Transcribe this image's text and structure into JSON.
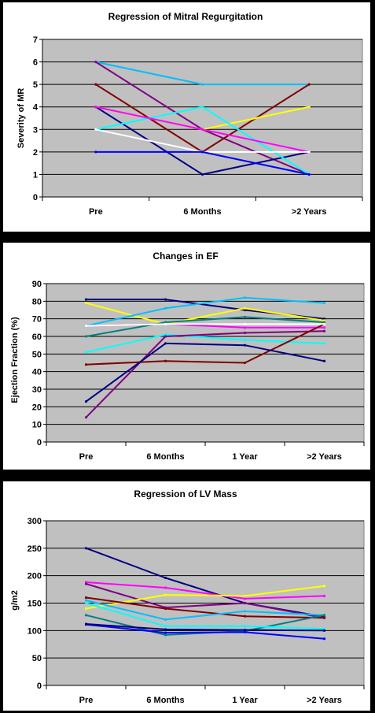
{
  "chart_data": [
    {
      "type": "line",
      "title": "Regression of Mitral Regurgitation",
      "xlabel": "",
      "ylabel": "Severity of MR",
      "categories": [
        "Pre",
        "6 Months",
        ">2 Years"
      ],
      "ylim": [
        0,
        7
      ],
      "ytick_step": 1,
      "grid": true,
      "series": [
        {
          "color": "#00BFFF",
          "values": [
            6,
            5,
            5
          ]
        },
        {
          "color": "#800080",
          "values": [
            6,
            3,
            1
          ]
        },
        {
          "color": "#800000",
          "values": [
            5,
            2,
            5
          ]
        },
        {
          "color": "#FFFF00",
          "values": [
            4,
            3,
            4
          ]
        },
        {
          "color": "#000080",
          "values": [
            4,
            1,
            2
          ]
        },
        {
          "color": "#00FFFF",
          "values": [
            3,
            4,
            1
          ]
        },
        {
          "color": "#FF00FF",
          "values": [
            4,
            3,
            2
          ]
        },
        {
          "color": "#FFFFFF",
          "values": [
            3,
            2,
            2
          ]
        },
        {
          "color": "#0000FF",
          "values": [
            2,
            2,
            1
          ]
        }
      ]
    },
    {
      "type": "line",
      "title": "Changes in EF",
      "xlabel": "",
      "ylabel": "Ejection Fraction (%)",
      "categories": [
        "Pre",
        "6 Months",
        "1 Year",
        ">2 Years"
      ],
      "ylim": [
        0,
        90
      ],
      "ytick_step": 10,
      "grid": true,
      "series": [
        {
          "color": "#000080",
          "values": [
            81,
            81,
            75,
            70
          ]
        },
        {
          "color": "#FFFF00",
          "values": [
            79,
            67,
            76,
            69
          ]
        },
        {
          "color": "#00BFFF",
          "values": [
            66,
            76,
            82,
            79
          ]
        },
        {
          "color": "#FF00FF",
          "values": [
            66,
            67,
            65,
            65
          ]
        },
        {
          "color": "#008080",
          "values": [
            60,
            68,
            71,
            68
          ]
        },
        {
          "color": "#00FFFF",
          "values": [
            51,
            61,
            58,
            56
          ]
        },
        {
          "color": "#800080",
          "values": [
            14,
            60,
            62,
            63
          ]
        },
        {
          "color": "#800000",
          "values": [
            44,
            46,
            45,
            67
          ]
        },
        {
          "color": "#000080",
          "values": [
            23,
            56,
            55,
            46
          ]
        },
        {
          "color": "#FFFFFF",
          "values": [
            66,
            67,
            67,
            67
          ]
        }
      ]
    },
    {
      "type": "line",
      "title": "Regression of LV Mass",
      "xlabel": "",
      "ylabel": "g/m2",
      "categories": [
        "Pre",
        "6 Months",
        "1 Year",
        ">2 Years"
      ],
      "ylim": [
        0,
        300
      ],
      "ytick_step": 50,
      "grid": true,
      "series": [
        {
          "color": "#000080",
          "values": [
            250,
            196,
            150,
            125
          ]
        },
        {
          "color": "#FF00FF",
          "values": [
            188,
            178,
            158,
            163
          ]
        },
        {
          "color": "#800080",
          "values": [
            185,
            142,
            150,
            123
          ]
        },
        {
          "color": "#FFFF00",
          "values": [
            140,
            165,
            163,
            181
          ]
        },
        {
          "color": "#800000",
          "values": [
            160,
            140,
            126,
            123
          ]
        },
        {
          "color": "#00BFFF",
          "values": [
            155,
            120,
            135,
            128
          ]
        },
        {
          "color": "#008080",
          "values": [
            128,
            92,
            99,
            128
          ]
        },
        {
          "color": "#00FFFF",
          "values": [
            150,
            108,
            108,
            103
          ]
        },
        {
          "color": "#0000FF",
          "values": [
            111,
            96,
            97,
            85
          ]
        },
        {
          "color": "#000080",
          "values": [
            112,
            102,
            101,
            100
          ]
        }
      ]
    }
  ]
}
